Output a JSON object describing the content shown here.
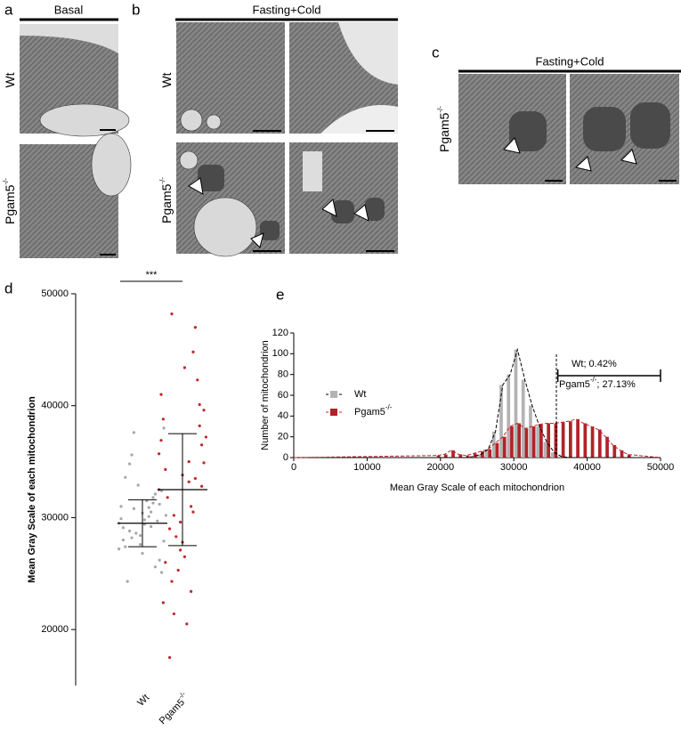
{
  "panels": {
    "a": {
      "label": "a",
      "title": "Basal",
      "rows": [
        {
          "label": "Wt"
        },
        {
          "label": "Pgam5",
          "sup": "-/-"
        }
      ]
    },
    "b": {
      "label": "b",
      "title": "Fasting+Cold",
      "rows": [
        {
          "label": "Wt"
        },
        {
          "label": "Pgam5",
          "sup": "-/-"
        }
      ]
    },
    "c": {
      "label": "c",
      "title": "Fasting+Cold",
      "rows": [
        {
          "label": "Pgam5",
          "sup": "-/-"
        }
      ]
    }
  },
  "chart_data": [
    {
      "type": "dot",
      "panel": "d",
      "ylabel": "Mean Gray Scale of each mitochondrion",
      "ylim": [
        15000,
        50000
      ],
      "yticks": [
        20000,
        30000,
        40000,
        50000
      ],
      "significance": "***",
      "groups": [
        {
          "name": "Wt",
          "color": "#a6a6a6",
          "mean": 29500,
          "sd_low": 27400,
          "sd_high": 31600,
          "values": [
            29500,
            30100,
            28800,
            31200,
            27600,
            29900,
            30500,
            28200,
            32400,
            26800,
            29100,
            31800,
            30800,
            27900,
            29400,
            33600,
            25600,
            28600,
            30200,
            31500,
            24300,
            29700,
            32900,
            27200,
            30900,
            34800,
            26200,
            28400,
            31000,
            29200,
            35600,
            25100,
            30400,
            28000,
            31300,
            37600,
            38000,
            29800,
            27400,
            32100
          ]
        },
        {
          "name": "Pgam5",
          "name_sup": "-/-",
          "color": "#c0272d",
          "mean": 32500,
          "sd_low": 27500,
          "sd_high": 37500,
          "values": [
            32500,
            35000,
            29000,
            38200,
            27100,
            41000,
            31000,
            24300,
            36500,
            33800,
            22400,
            44800,
            30200,
            39600,
            26500,
            34300,
            47000,
            28300,
            37200,
            20500,
            31800,
            42300,
            25300,
            35700,
            33200,
            17500,
            40100,
            29600,
            36900,
            23400,
            48200,
            32800,
            27800,
            38800,
            30500,
            21400,
            34900,
            43400,
            26000,
            33500
          ]
        }
      ]
    },
    {
      "type": "histogram",
      "panel": "e",
      "xlabel": "Mean Gray Scale of each mitochondrion",
      "ylabel": "Number of mitochondrion",
      "xlim": [
        0,
        50000
      ],
      "xticks": [
        0,
        10000,
        20000,
        30000,
        40000,
        50000
      ],
      "ylim": [
        0,
        120
      ],
      "yticks": [
        0,
        20,
        40,
        60,
        80,
        100,
        120
      ],
      "bins": [
        19000,
        20000,
        21000,
        22000,
        23000,
        24000,
        25000,
        26000,
        27000,
        28000,
        29000,
        30000,
        31000,
        32000,
        33000,
        34000,
        35000,
        36000,
        37000,
        38000,
        39000,
        40000,
        41000,
        42000,
        43000,
        44000,
        45000,
        46000
      ],
      "series": [
        {
          "name": "Wt",
          "color": "#b3b3b3",
          "line_color": "#000000",
          "values": [
            0,
            0,
            0,
            0,
            0,
            1,
            3,
            8,
            25,
            70,
            80,
            104,
            75,
            50,
            30,
            15,
            5,
            1,
            0,
            0,
            0,
            0,
            0,
            0,
            0,
            0,
            0
          ]
        },
        {
          "name": "Pgam5",
          "name_sup": "-/-",
          "color": "#b0232a",
          "line_color": "#c0272d",
          "values": [
            2,
            3,
            7,
            3,
            2,
            4,
            6,
            8,
            14,
            20,
            30,
            33,
            28,
            30,
            32,
            33,
            33,
            34,
            35,
            37,
            33,
            30,
            27,
            20,
            12,
            7,
            3
          ]
        }
      ],
      "threshold": 35800,
      "bracket": [
        36000,
        50000
      ],
      "annotations": [
        {
          "text": "Wt; 0.42%"
        },
        {
          "text": "Pgam5",
          "sup": "-/-",
          "rest": "; 27.13%"
        }
      ]
    }
  ]
}
